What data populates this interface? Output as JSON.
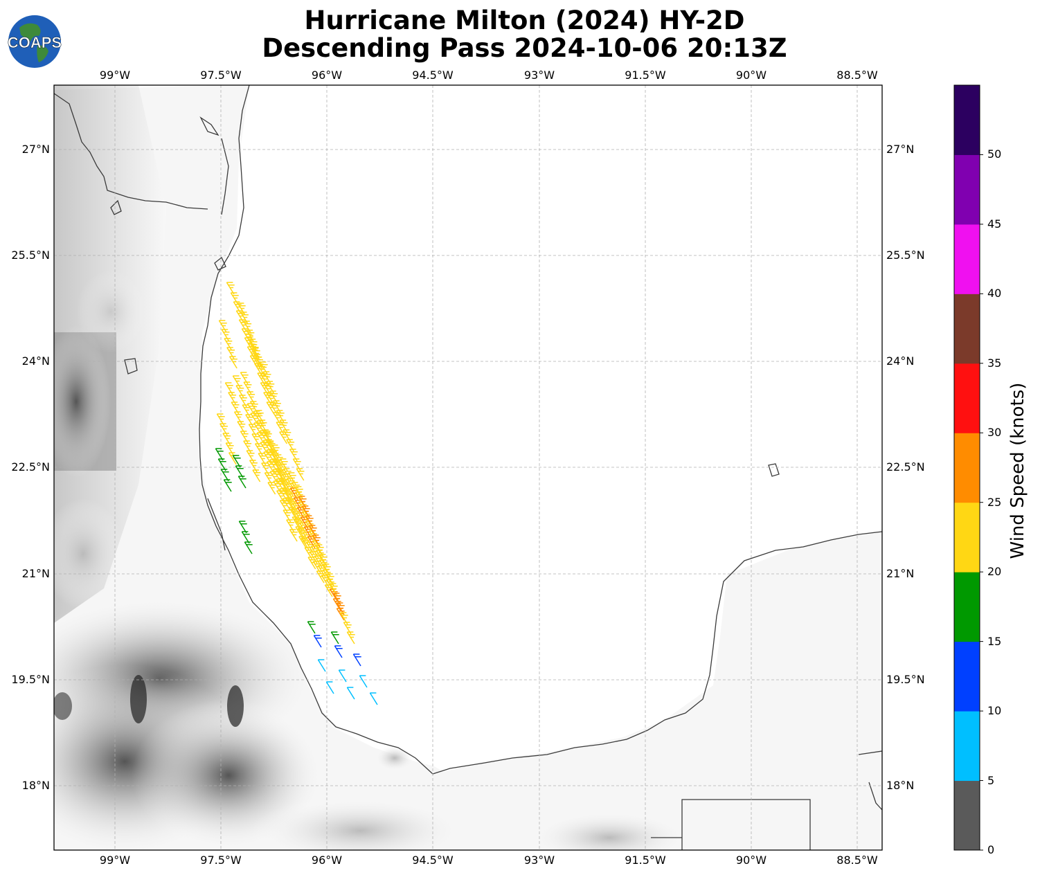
{
  "title": {
    "line1": "Hurricane Milton (2024) HY-2D",
    "line2": "Descending Pass 2024-10-06 20:13Z"
  },
  "logo": {
    "text": "COAPS"
  },
  "map": {
    "lon_ticks": [
      "99°W",
      "97.5°W",
      "96°W",
      "94.5°W",
      "93°W",
      "91.5°W",
      "90°W",
      "88.5°W"
    ],
    "lat_ticks": [
      "27°N",
      "25.5°N",
      "24°N",
      "22.5°N",
      "21°N",
      "19.5°N",
      "18°N"
    ],
    "gridlines": true
  },
  "colorbar": {
    "label": "Wind Speed (knots)",
    "ticks": [
      "0",
      "5",
      "10",
      "15",
      "20",
      "25",
      "30",
      "35",
      "40",
      "45",
      "50"
    ],
    "colors": [
      "#5a5a5a",
      "#00bfff",
      "#0040ff",
      "#009900",
      "#ffd714",
      "#ff8c00",
      "#ff1010",
      "#7b3a2a",
      "#f010f0",
      "#8000b0",
      "#2c0060"
    ]
  },
  "wind_colors": {
    "5-10": "#00bfff",
    "10-15": "#0040ff",
    "15-20": "#009900",
    "20-25": "#ffd714",
    "25-30": "#ff8c00"
  }
}
